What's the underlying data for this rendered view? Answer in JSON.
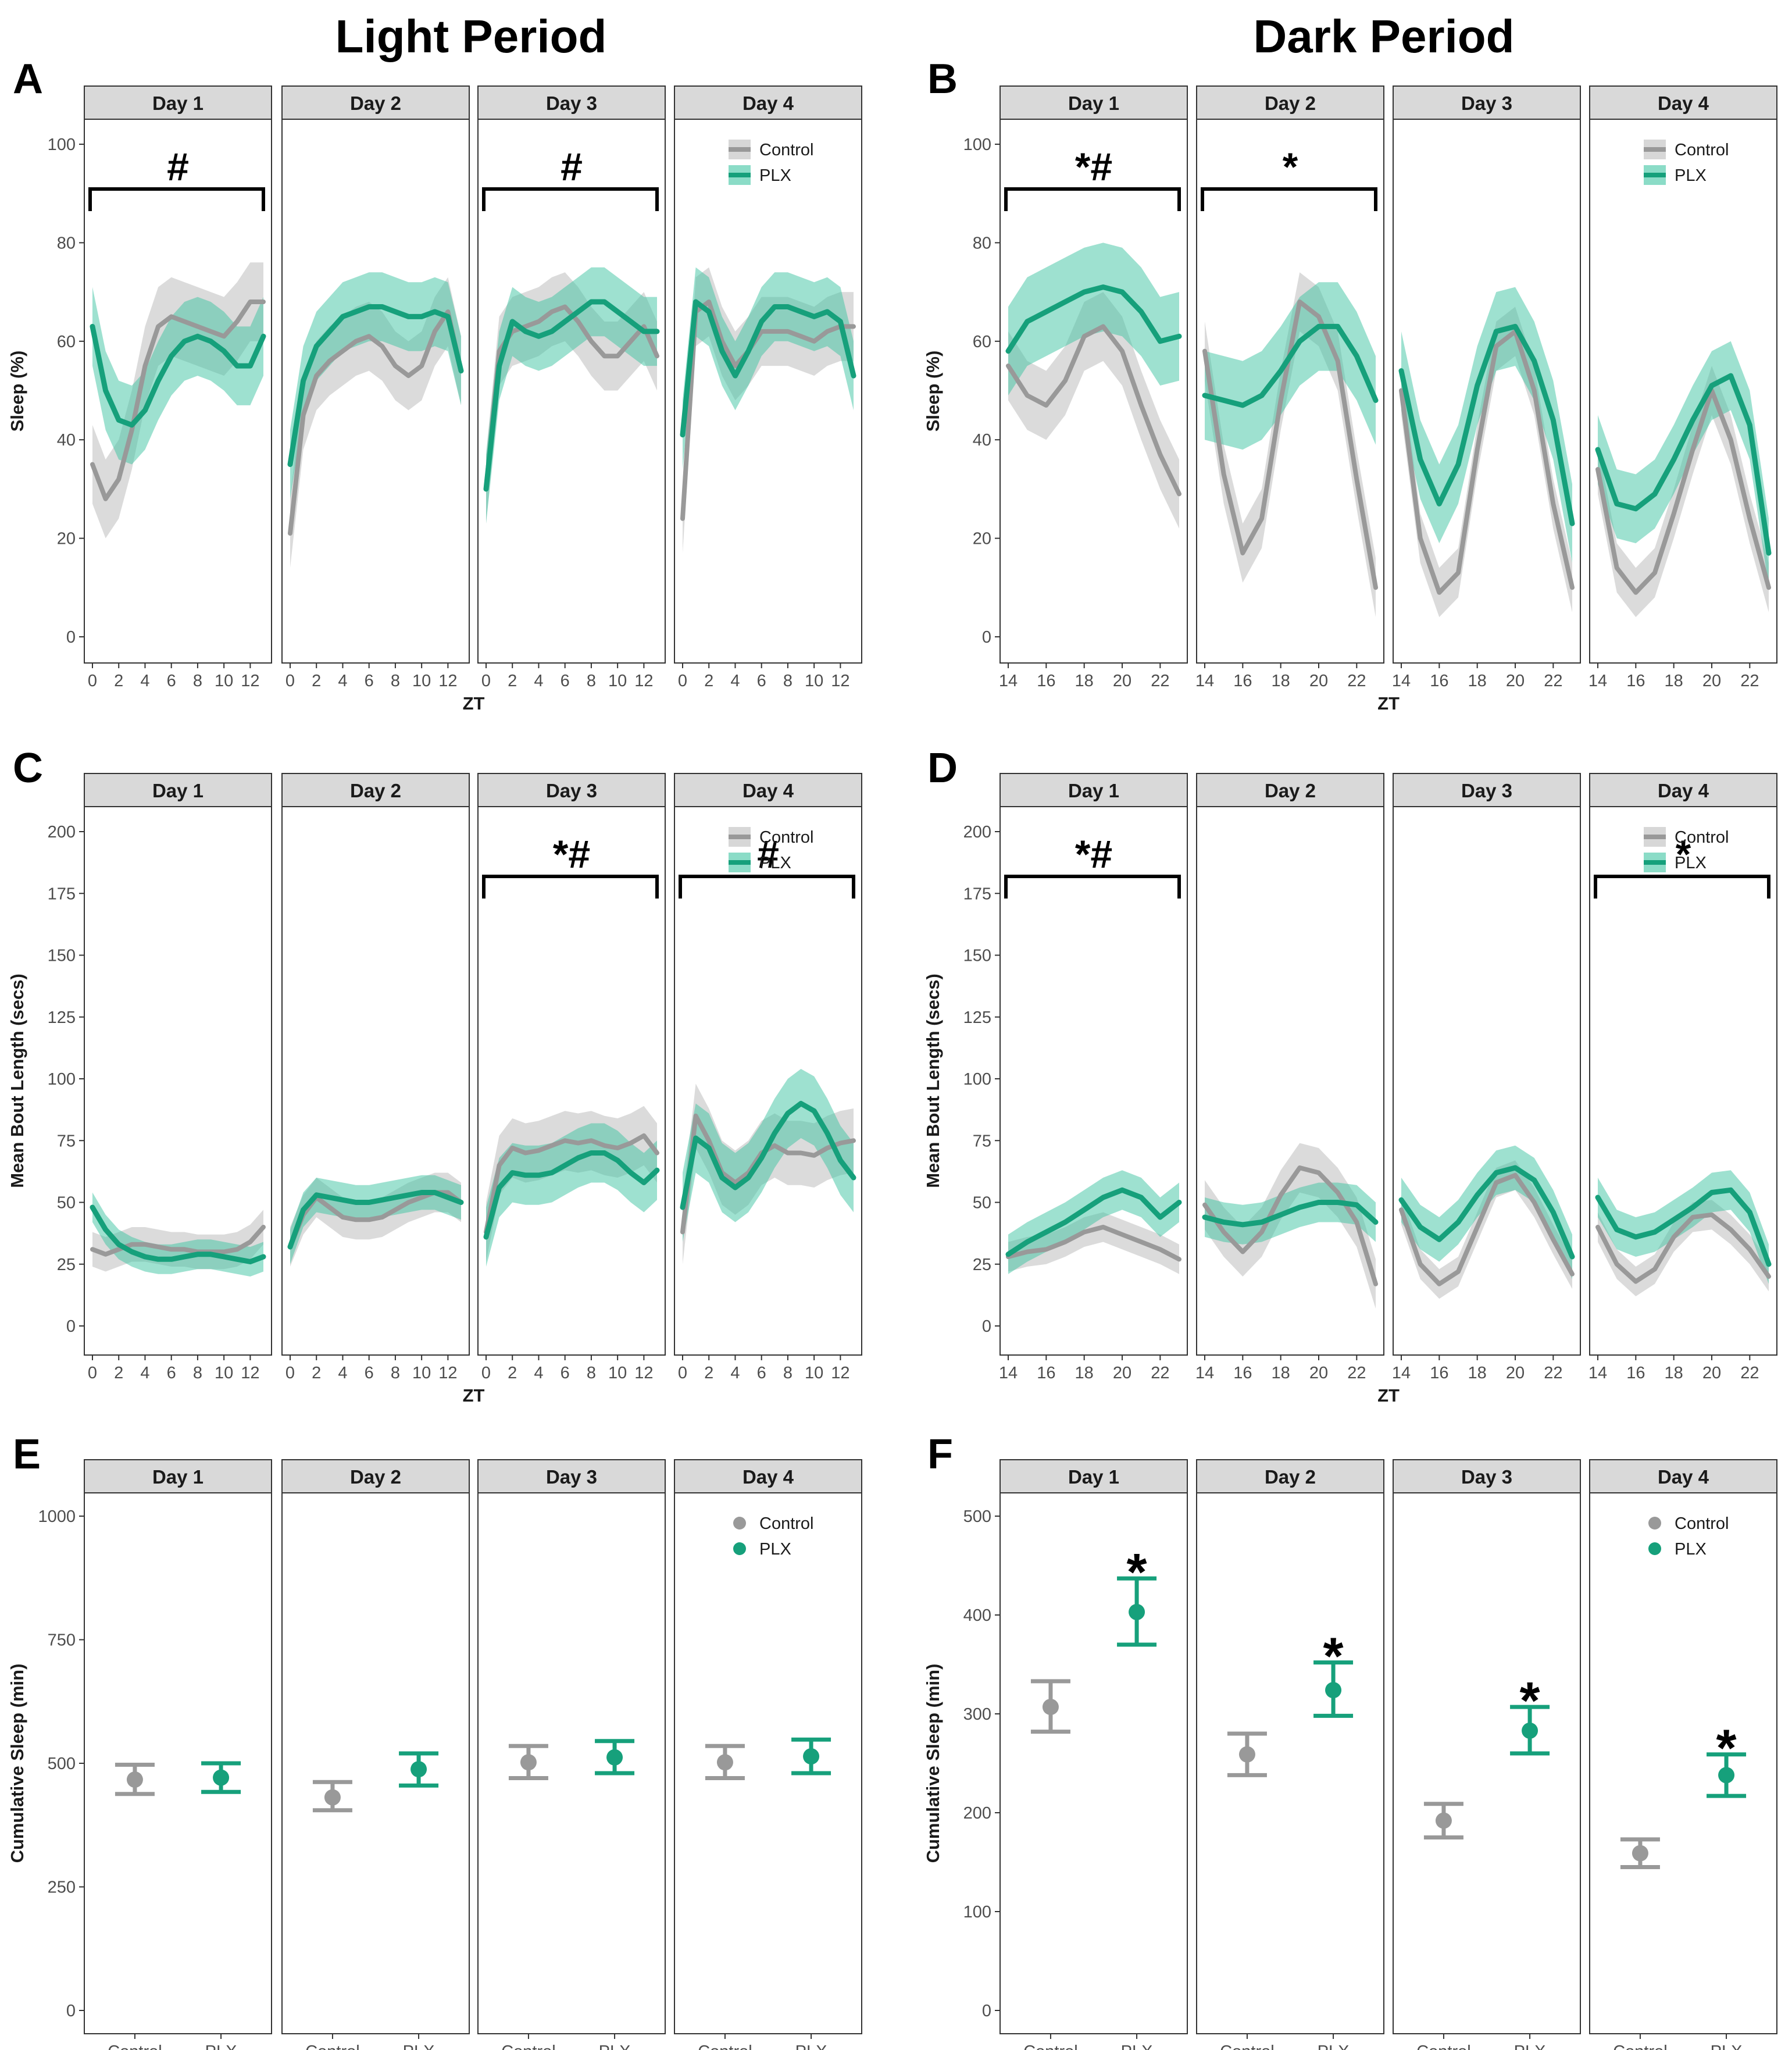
{
  "colors": {
    "control": "#999999",
    "control_band": "#bdbdbd",
    "plx": "#16a07b",
    "plx_band": "#3ec4a2",
    "strip": "#d9d9d9"
  },
  "figure": {
    "light_title": "Light Period",
    "dark_title": "Dark Period",
    "legend": {
      "control": "Control",
      "plx": "PLX"
    }
  },
  "chart_data": [
    {
      "id": "A",
      "type": "line",
      "period": "Light Period",
      "ylabel": "Sleep (%)",
      "xlabel": "ZT",
      "ylim": [
        0,
        100
      ],
      "yticks": [
        "0",
        "20",
        "40",
        "60",
        "80",
        "100"
      ],
      "xticks": [
        "0",
        "2",
        "4",
        "6",
        "8",
        "10",
        "12"
      ],
      "x": [
        0,
        1,
        2,
        3,
        4,
        5,
        6,
        7,
        8,
        9,
        10,
        11,
        12,
        13
      ],
      "days": [
        {
          "label": "Day 1",
          "control": [
            35,
            28,
            32,
            42,
            55,
            63,
            65,
            64,
            63,
            62,
            61,
            64,
            68,
            68
          ],
          "control_se": 8,
          "plx": [
            63,
            50,
            44,
            43,
            46,
            52,
            57,
            60,
            61,
            60,
            58,
            55,
            55,
            61
          ],
          "plx_se": 8
        },
        {
          "label": "Day 2",
          "control": [
            21,
            45,
            53,
            56,
            58,
            60,
            61,
            59,
            55,
            53,
            55,
            62,
            66,
            54
          ],
          "control_se": 7,
          "plx": [
            35,
            52,
            59,
            62,
            65,
            66,
            67,
            67,
            66,
            65,
            65,
            66,
            65,
            54
          ],
          "plx_se": 7
        },
        {
          "label": "Day 3",
          "control": [
            30,
            58,
            62,
            63,
            64,
            66,
            67,
            64,
            60,
            57,
            57,
            60,
            63,
            57
          ],
          "control_se": 7,
          "plx": [
            30,
            55,
            64,
            62,
            61,
            62,
            64,
            66,
            68,
            68,
            66,
            64,
            62,
            62
          ],
          "plx_se": 7
        },
        {
          "label": "Day 4",
          "control": [
            24,
            66,
            68,
            60,
            55,
            58,
            62,
            62,
            62,
            61,
            60,
            62,
            63,
            63
          ],
          "control_se": 7,
          "plx": [
            41,
            68,
            66,
            58,
            53,
            58,
            64,
            67,
            67,
            66,
            65,
            66,
            64,
            53
          ],
          "plx_se": 7
        }
      ],
      "annotations": [
        {
          "day": 1,
          "text": "#"
        },
        {
          "day": 3,
          "text": "#"
        }
      ]
    },
    {
      "id": "B",
      "type": "line",
      "period": "Dark Period",
      "ylabel": "Sleep (%)",
      "xlabel": "ZT",
      "ylim": [
        0,
        100
      ],
      "yticks": [
        "0",
        "20",
        "40",
        "60",
        "80",
        "100"
      ],
      "xticks": [
        "14",
        "16",
        "18",
        "20",
        "22"
      ],
      "x": [
        14,
        15,
        16,
        17,
        18,
        19,
        20,
        21,
        22,
        23
      ],
      "days": [
        {
          "label": "Day 1",
          "control": [
            55,
            49,
            47,
            52,
            61,
            63,
            58,
            47,
            37,
            29
          ],
          "control_se": 7,
          "plx": [
            58,
            64,
            66,
            68,
            70,
            71,
            70,
            66,
            60,
            61
          ],
          "plx_se": 9
        },
        {
          "label": "Day 2",
          "control": [
            58,
            33,
            17,
            24,
            48,
            68,
            65,
            56,
            32,
            10
          ],
          "control_se": 6,
          "plx": [
            49,
            48,
            47,
            49,
            54,
            60,
            63,
            63,
            57,
            48
          ],
          "plx_se": 9
        },
        {
          "label": "Day 3",
          "control": [
            50,
            20,
            9,
            13,
            38,
            59,
            62,
            50,
            27,
            10
          ],
          "control_se": 5,
          "plx": [
            54,
            36,
            27,
            35,
            51,
            62,
            63,
            56,
            44,
            23
          ],
          "plx_se": 8
        },
        {
          "label": "Day 4",
          "control": [
            34,
            14,
            9,
            13,
            25,
            38,
            50,
            40,
            24,
            10
          ],
          "control_se": 5,
          "plx": [
            38,
            27,
            26,
            29,
            36,
            44,
            51,
            53,
            43,
            17
          ],
          "plx_se": 7
        }
      ],
      "annotations": [
        {
          "day": 1,
          "text": "*#"
        },
        {
          "day": 2,
          "text": "*"
        }
      ]
    },
    {
      "id": "C",
      "type": "line",
      "period": "Light Period",
      "ylabel": "Mean Bout Length (secs)",
      "xlabel": "ZT",
      "ylim": [
        0,
        200
      ],
      "yticks": [
        "0",
        "25",
        "50",
        "75",
        "100",
        "125",
        "150",
        "175",
        "200"
      ],
      "xticks": [
        "0",
        "2",
        "4",
        "6",
        "8",
        "10",
        "12"
      ],
      "x": [
        0,
        1,
        2,
        3,
        4,
        5,
        6,
        7,
        8,
        9,
        10,
        11,
        12,
        13
      ],
      "days": [
        {
          "label": "Day 1",
          "control": [
            31,
            29,
            31,
            33,
            33,
            32,
            31,
            31,
            30,
            30,
            30,
            31,
            34,
            40
          ],
          "control_se": 7,
          "plx": [
            48,
            39,
            33,
            30,
            28,
            27,
            27,
            28,
            29,
            29,
            28,
            27,
            26,
            28
          ],
          "plx_se": 6
        },
        {
          "label": "Day 2",
          "control": [
            32,
            45,
            52,
            48,
            44,
            43,
            43,
            44,
            47,
            50,
            52,
            54,
            54,
            50
          ],
          "control_se": 8,
          "plx": [
            32,
            47,
            53,
            52,
            51,
            50,
            50,
            51,
            52,
            53,
            54,
            54,
            52,
            50
          ],
          "plx_se": 7
        },
        {
          "label": "Day 3",
          "control": [
            38,
            65,
            72,
            70,
            71,
            73,
            75,
            74,
            75,
            73,
            72,
            74,
            77,
            70
          ],
          "control_se": 12,
          "plx": [
            36,
            56,
            62,
            61,
            61,
            62,
            65,
            68,
            70,
            70,
            67,
            62,
            58,
            63
          ],
          "plx_se": 12
        },
        {
          "label": "Day 4",
          "control": [
            38,
            85,
            75,
            62,
            58,
            62,
            70,
            73,
            70,
            70,
            69,
            72,
            74,
            75
          ],
          "control_se": 13,
          "plx": [
            48,
            76,
            72,
            60,
            56,
            60,
            68,
            78,
            86,
            90,
            87,
            78,
            67,
            60
          ],
          "plx_se": 14
        }
      ],
      "annotations": [
        {
          "day": 3,
          "text": "*#"
        },
        {
          "day": 4,
          "text": "#"
        }
      ]
    },
    {
      "id": "D",
      "type": "line",
      "period": "Dark Period",
      "ylabel": "Mean Bout Length (secs)",
      "xlabel": "ZT",
      "ylim": [
        0,
        200
      ],
      "yticks": [
        "0",
        "25",
        "50",
        "75",
        "100",
        "125",
        "150",
        "175",
        "200"
      ],
      "xticks": [
        "14",
        "16",
        "18",
        "20",
        "22"
      ],
      "x": [
        14,
        15,
        16,
        17,
        18,
        19,
        20,
        21,
        22,
        23
      ],
      "days": [
        {
          "label": "Day 1",
          "control": [
            28,
            30,
            31,
            34,
            38,
            40,
            37,
            34,
            31,
            27
          ],
          "control_se": 6,
          "plx": [
            29,
            34,
            38,
            42,
            47,
            52,
            55,
            52,
            44,
            50
          ],
          "plx_se": 8
        },
        {
          "label": "Day 2",
          "control": [
            49,
            38,
            30,
            38,
            53,
            64,
            62,
            54,
            42,
            17
          ],
          "control_se": 10,
          "plx": [
            44,
            42,
            41,
            42,
            45,
            48,
            50,
            50,
            49,
            42
          ],
          "plx_se": 8
        },
        {
          "label": "Day 3",
          "control": [
            47,
            25,
            17,
            22,
            40,
            58,
            61,
            50,
            35,
            21
          ],
          "control_se": 6,
          "plx": [
            51,
            40,
            35,
            42,
            53,
            62,
            64,
            59,
            46,
            28
          ],
          "plx_se": 9
        },
        {
          "label": "Day 4",
          "control": [
            40,
            25,
            18,
            23,
            36,
            44,
            45,
            39,
            31,
            20
          ],
          "control_se": 6,
          "plx": [
            52,
            39,
            36,
            38,
            43,
            48,
            54,
            55,
            46,
            25
          ],
          "plx_se": 8
        }
      ],
      "annotations": [
        {
          "day": 1,
          "text": "*#"
        },
        {
          "day": 4,
          "text": "*"
        }
      ]
    },
    {
      "id": "E",
      "type": "errorbar",
      "period": "Light Period",
      "ylabel": "Cumulative Sleep (min)",
      "ylim": [
        0,
        1000
      ],
      "yticks": [
        "0",
        "250",
        "500",
        "750",
        "1000"
      ],
      "categories": [
        "Control",
        "PLX"
      ],
      "days": [
        {
          "label": "Day 1",
          "control": {
            "mean": 467,
            "lo": 438,
            "hi": 497
          },
          "plx": {
            "mean": 471,
            "lo": 442,
            "hi": 500
          }
        },
        {
          "label": "Day 2",
          "control": {
            "mean": 431,
            "lo": 405,
            "hi": 462
          },
          "plx": {
            "mean": 488,
            "lo": 455,
            "hi": 520
          }
        },
        {
          "label": "Day 3",
          "control": {
            "mean": 502,
            "lo": 470,
            "hi": 535
          },
          "plx": {
            "mean": 512,
            "lo": 480,
            "hi": 545
          }
        },
        {
          "label": "Day 4",
          "control": {
            "mean": 502,
            "lo": 470,
            "hi": 535
          },
          "plx": {
            "mean": 514,
            "lo": 480,
            "hi": 548
          }
        }
      ],
      "annotations": []
    },
    {
      "id": "F",
      "type": "errorbar",
      "period": "Dark Period",
      "ylabel": "Cumulative Sleep (min)",
      "ylim": [
        0,
        500
      ],
      "yticks": [
        "0",
        "100",
        "200",
        "300",
        "400",
        "500"
      ],
      "categories": [
        "Control",
        "PLX"
      ],
      "days": [
        {
          "label": "Day 1",
          "control": {
            "mean": 307,
            "lo": 282,
            "hi": 333
          },
          "plx": {
            "mean": 403,
            "lo": 370,
            "hi": 437
          }
        },
        {
          "label": "Day 2",
          "control": {
            "mean": 259,
            "lo": 238,
            "hi": 280
          },
          "plx": {
            "mean": 324,
            "lo": 298,
            "hi": 352
          }
        },
        {
          "label": "Day 3",
          "control": {
            "mean": 192,
            "lo": 175,
            "hi": 209
          },
          "plx": {
            "mean": 283,
            "lo": 260,
            "hi": 307
          }
        },
        {
          "label": "Day 4",
          "control": {
            "mean": 159,
            "lo": 145,
            "hi": 173
          },
          "plx": {
            "mean": 238,
            "lo": 217,
            "hi": 259
          }
        }
      ],
      "annotations": [
        {
          "day": 1,
          "text": "*"
        },
        {
          "day": 2,
          "text": "*"
        },
        {
          "day": 3,
          "text": "*"
        },
        {
          "day": 4,
          "text": "*"
        }
      ]
    }
  ]
}
